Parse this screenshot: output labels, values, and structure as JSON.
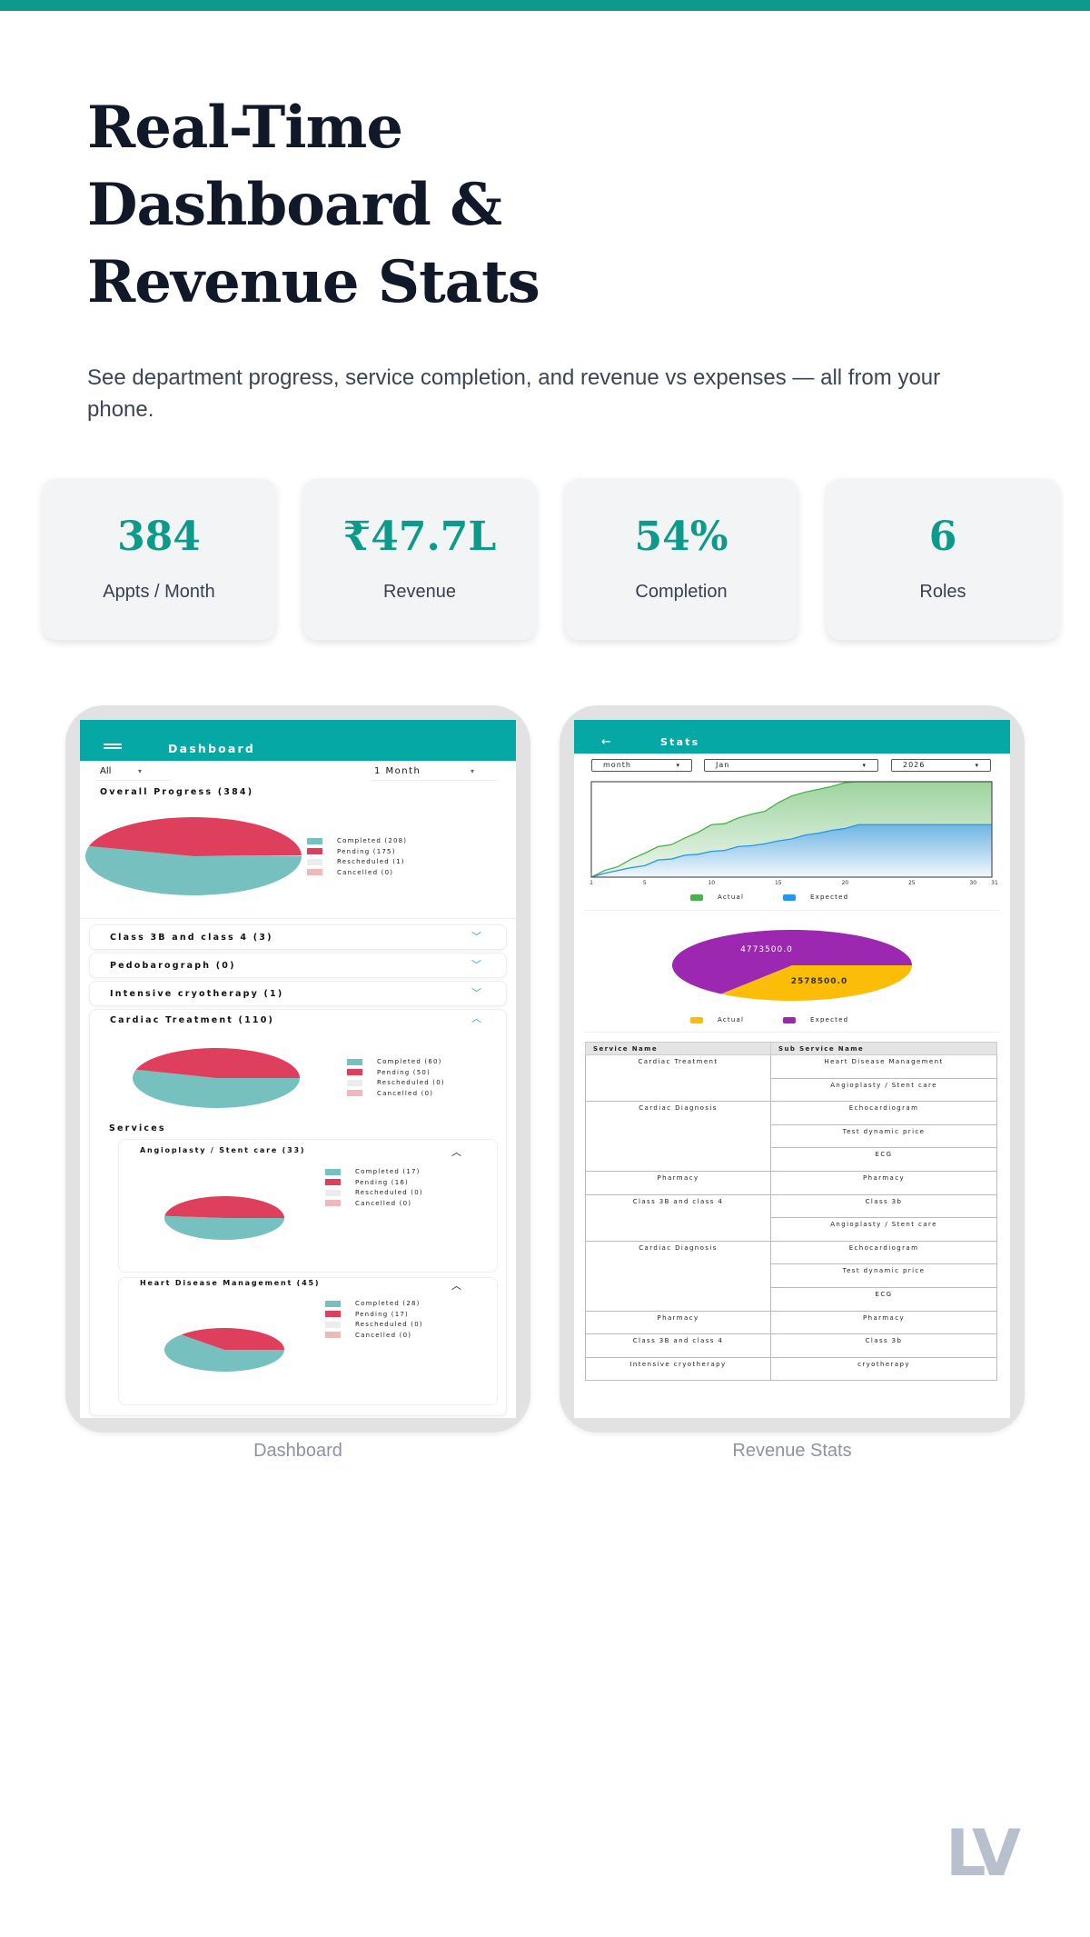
{
  "hero": {
    "title_lines": [
      "Real-Time",
      "Dashboard &",
      "Revenue Stats"
    ],
    "subtitle": "See department progress, service completion, and revenue vs expenses — all from your phone."
  },
  "stats": [
    {
      "value": "384",
      "label": "Appts / Month"
    },
    {
      "value": "₹47.7L",
      "label": "Revenue"
    },
    {
      "value": "54%",
      "label": "Completion"
    },
    {
      "value": "6",
      "label": "Roles"
    }
  ],
  "colors": {
    "accent": "#0e9a8a",
    "app_bar": "#06a8a5",
    "completed": "#76c1bf",
    "pending": "#de3f5c",
    "rescheduled": "#ececec",
    "cancelled": "#f0b8b8",
    "actual_line": "#4caf50",
    "expected_line": "#2196f3",
    "pie_actual": "#fbbd08",
    "pie_expected": "#9c27b0"
  },
  "dashboard": {
    "caption": "Dashboard",
    "title": "Dashboard",
    "menu_icon": "hamburger-icon",
    "filter_department": "All",
    "filter_period": "1 Month",
    "overall": {
      "title": "Overall Progress (384)",
      "legend": [
        "Completed (208)",
        "Pending (175)",
        "Rescheduled (1)",
        "Cancelled (0)"
      ],
      "values": [
        208,
        175,
        1,
        0
      ]
    },
    "accordions": [
      {
        "title": "Class 3B and class 4 (3)",
        "expanded": false
      },
      {
        "title": "Pedobarograph (0)",
        "expanded": false
      },
      {
        "title": "Intensive cryotherapy (1)",
        "expanded": false
      },
      {
        "title": "Cardiac Treatment  (110)",
        "expanded": true
      }
    ],
    "cardiac": {
      "legend": [
        "Completed (60)",
        "Pending (50)",
        "Rescheduled (0)",
        "Cancelled (0)"
      ],
      "values": [
        60,
        50,
        0,
        0
      ],
      "services_label": "Services",
      "services": [
        {
          "title": "Angioplasty / Stent care (33)",
          "legend": [
            "Completed (17)",
            "Pending (16)",
            "Rescheduled (0)",
            "Cancelled (0)"
          ],
          "values": [
            17,
            16,
            0,
            0
          ]
        },
        {
          "title": "Heart Disease Management  (45)",
          "legend": [
            "Completed (28)",
            "Pending (17)",
            "Rescheduled (0)",
            "Cancelled (0)"
          ],
          "values": [
            28,
            17,
            0,
            0
          ]
        }
      ]
    }
  },
  "revenue": {
    "caption": "Revenue Stats",
    "title": "Stats",
    "back_icon": "arrow-left-icon",
    "filters": {
      "period": "month",
      "month": "Jan",
      "year": "2026"
    },
    "chart_data": [
      {
        "type": "area",
        "x": [
          1,
          2,
          3,
          4,
          5,
          6,
          7,
          8,
          9,
          10,
          11,
          12,
          13,
          14,
          15,
          16,
          17,
          18,
          19,
          20,
          21,
          22,
          23,
          24,
          25,
          26,
          27,
          28,
          29,
          30,
          31
        ],
        "x_ticks": [
          "1",
          "5",
          "10",
          "15",
          "20",
          "25",
          "30",
          "31"
        ],
        "xlim": [
          1,
          31
        ],
        "ylim": [
          0,
          1
        ],
        "grid": false,
        "legend_position": "bottom",
        "series": [
          {
            "name": "Actual",
            "values": [
              0,
              0.07,
              0.11,
              0.19,
              0.25,
              0.32,
              0.34,
              0.41,
              0.47,
              0.55,
              0.56,
              0.62,
              0.66,
              0.69,
              0.78,
              0.85,
              0.89,
              0.92,
              0.95,
              0.99,
              1,
              1,
              1,
              1,
              1,
              1,
              1,
              1,
              1,
              1,
              1
            ]
          },
          {
            "name": "Expected",
            "values": [
              0,
              0.04,
              0.07,
              0.1,
              0.12,
              0.18,
              0.19,
              0.23,
              0.24,
              0.27,
              0.28,
              0.32,
              0.33,
              0.35,
              0.38,
              0.4,
              0.44,
              0.46,
              0.49,
              0.51,
              0.55,
              0.55,
              0.55,
              0.55,
              0.55,
              0.55,
              0.55,
              0.55,
              0.55,
              0.55,
              0.55
            ]
          }
        ]
      },
      {
        "type": "pie",
        "legend_position": "bottom",
        "slices": [
          {
            "name": "Actual",
            "value": 2578500.0,
            "label": "2578500.0"
          },
          {
            "name": "Expected",
            "value": 4773500.0,
            "label": "4773500.0"
          }
        ]
      }
    ],
    "table": {
      "headers": [
        "Service Name",
        "Sub Service Name"
      ],
      "groups": [
        {
          "service": "Cardiac Treatment",
          "subs": [
            "Heart Disease Management",
            "Angioplasty / Stent care"
          ]
        },
        {
          "service": "Cardiac Diagnosis",
          "subs": [
            "Echocardiogram",
            "Test dynamic price",
            "ECG"
          ]
        },
        {
          "service": "Pharmacy",
          "subs": [
            "Pharmacy"
          ]
        },
        {
          "service": "Class 3B and class 4",
          "subs": [
            "Class 3b",
            "Angioplasty / Stent care"
          ]
        },
        {
          "service": "Cardiac Diagnosis",
          "subs": [
            "Echocardiogram",
            "Test dynamic price",
            "ECG"
          ]
        },
        {
          "service": "Pharmacy",
          "subs": [
            "Pharmacy"
          ]
        },
        {
          "service": "Class 3B and class 4",
          "subs": [
            "Class 3b"
          ]
        },
        {
          "service": "Intensive cryotherapy",
          "subs": [
            "cryotherapy"
          ]
        }
      ]
    }
  },
  "logo": "LV"
}
